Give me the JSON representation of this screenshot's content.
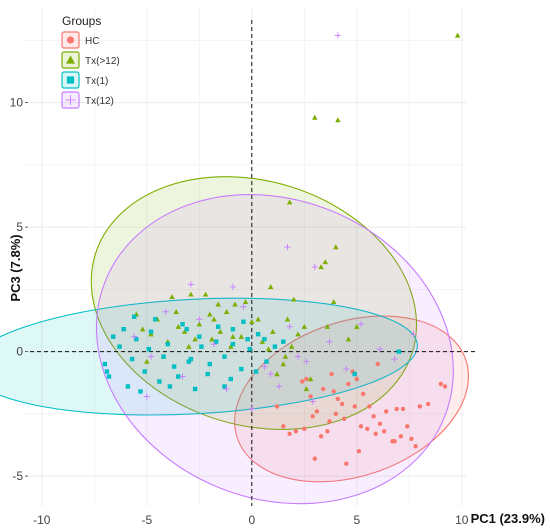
{
  "chart_data": {
    "type": "scatter",
    "xlabel": "PC1 (23.9%)",
    "ylabel": "PC3 (7.8%)",
    "xlim": [
      -10.8,
      10.2
    ],
    "ylim": [
      -6.2,
      13.8
    ],
    "x_ticks": [
      -10,
      -5,
      0,
      5,
      10
    ],
    "y_ticks": [
      -5,
      0,
      5,
      10
    ],
    "x_tick_labels": [
      "-10",
      "-5",
      "0",
      "5",
      "10"
    ],
    "y_tick_labels": [
      "-5",
      "0",
      "5",
      "10"
    ],
    "grid": true,
    "reference_lines": {
      "x": 0,
      "y": 0,
      "style": "dashed"
    },
    "legend": {
      "title": "Groups",
      "position": "top-left"
    },
    "series": [
      {
        "name": "HC",
        "marker": "circle",
        "color": "#F8766D",
        "ellipse": {
          "cx": 4.75,
          "cy": -1.9,
          "rx": 5.75,
          "ry": 3.1,
          "angle": 19
        },
        "x": [
          2.4,
          2.8,
          3.1,
          3.4,
          3.6,
          3.9,
          4.1,
          4.3,
          4.6,
          4.8,
          5.0,
          5.3,
          5.6,
          5.8,
          6.1,
          6.4,
          6.8,
          7.2,
          7.6,
          8.0,
          8.4,
          9.0,
          9.2,
          1.5,
          1.8,
          2.1,
          2.5,
          2.9,
          3.3,
          3.7,
          4.0,
          4.4,
          4.9,
          5.2,
          5.5,
          5.9,
          6.3,
          6.7,
          7.1,
          7.4,
          7.8,
          1.2,
          3.0,
          4.5,
          5.1,
          2.6,
          3.8,
          6.0,
          6.9
        ],
        "y": [
          -1.2,
          -1.8,
          -2.4,
          -1.5,
          -3.2,
          -1.6,
          -1.9,
          -2.1,
          -1.3,
          -0.8,
          -1.1,
          -1.7,
          -2.2,
          -2.6,
          -2.9,
          -2.4,
          -3.6,
          -2.3,
          -3.5,
          -2.2,
          -2.1,
          -1.3,
          -1.4,
          -3.0,
          -3.3,
          -3.2,
          -3.1,
          -2.6,
          -3.4,
          -2.8,
          -2.5,
          -2.7,
          -2.2,
          -3.0,
          -3.1,
          -3.3,
          -3.2,
          -3.6,
          -3.4,
          -3.0,
          -3.8,
          -2.2,
          -4.3,
          -4.5,
          -4.0,
          -1.1,
          -0.9,
          -0.5,
          -2.3
        ]
      },
      {
        "name": "Tx(>12)",
        "marker": "triangle",
        "color": "#7CAE00",
        "ellipse": {
          "cx": 0.1,
          "cy": 1.95,
          "rx": 7.9,
          "ry": 4.9,
          "angle": -17
        },
        "x": [
          9.8,
          3.0,
          4.1,
          1.8,
          3.5,
          -2.0,
          -1.5,
          -1.0,
          -0.5,
          0.0,
          0.5,
          1.0,
          1.5,
          2.0,
          2.5,
          -4.0,
          -3.5,
          -3.0,
          -2.5,
          -4.5,
          -5.0,
          -5.5,
          -3.8,
          -2.7,
          -1.2,
          0.3,
          1.2,
          2.2,
          3.3,
          -0.8,
          -1.8,
          -3.2,
          2.8,
          4.0,
          1.7,
          0.8,
          -0.3,
          -2.2,
          -4.2,
          -5.2,
          1.6,
          -1.6,
          -3.6,
          4.6,
          2.6,
          3.6,
          0.9,
          -0.9,
          -2.9,
          -4.8,
          1.9,
          -1.9,
          5.0,
          3.9
        ],
        "y": [
          12.7,
          9.4,
          9.3,
          6.0,
          3.6,
          1.5,
          0.8,
          0.2,
          0.6,
          1.2,
          0.4,
          0.8,
          -0.5,
          2.1,
          1.0,
          0.4,
          1.0,
          0.2,
          1.1,
          1.3,
          -0.4,
          1.5,
          2.2,
          0.5,
          1.6,
          1.3,
          -0.9,
          0.7,
          3.4,
          1.9,
          1.3,
          0.8,
          -1.1,
          4.2,
          1.3,
          0.1,
          2.0,
          2.3,
          -0.2,
          0.9,
          -0.2,
          1.9,
          1.6,
          0.5,
          -1.5,
          1.0,
          2.6,
          0.6,
          2.3,
          0.7,
          0.2,
          0.5,
          1.0,
          2.0
        ]
      },
      {
        "name": "Tx(1)",
        "marker": "square",
        "color": "#00BFC4",
        "ellipse": {
          "cx": -2.8,
          "cy": -0.2,
          "rx": 10.7,
          "ry": 2.3,
          "angle": 3
        },
        "x": [
          -7.0,
          -6.8,
          -6.3,
          -5.9,
          -5.5,
          -5.1,
          -4.8,
          -4.4,
          -4.0,
          -3.7,
          -3.3,
          -2.9,
          -2.5,
          -2.1,
          -1.7,
          -1.3,
          -0.9,
          -0.5,
          -0.1,
          0.3,
          0.7,
          1.1,
          -6.6,
          -5.7,
          -4.6,
          -3.5,
          -2.4,
          -1.3,
          -0.2,
          -5.3,
          -4.2,
          -3.1,
          -2.0,
          -0.9,
          0.2,
          -6.1,
          -3.9,
          -1.6,
          0.6,
          -4.9,
          -2.7,
          -0.4,
          -6.9,
          -5.6,
          1.5,
          4.9,
          7.0,
          -3.0,
          -1.0
        ],
        "y": [
          -0.5,
          -1.0,
          0.2,
          -1.4,
          0.5,
          -0.8,
          0.8,
          -1.2,
          0.3,
          -0.6,
          1.1,
          -0.3,
          0.6,
          -0.9,
          0.4,
          -0.2,
          0.9,
          -0.7,
          0.1,
          0.7,
          -0.4,
          0.2,
          0.6,
          -0.3,
          1.3,
          -1.0,
          0.2,
          -1.4,
          0.5,
          -1.6,
          -0.2,
          0.9,
          -0.5,
          0.3,
          -0.8,
          0.9,
          -1.4,
          1.0,
          0.5,
          0.1,
          -1.5,
          1.2,
          -0.8,
          1.4,
          0.4,
          -0.9,
          0.0,
          -0.4,
          -1.1
        ]
      },
      {
        "name": "Tx(12)",
        "marker": "cross",
        "color": "#C77CFF",
        "ellipse": {
          "cx": 1.1,
          "cy": 0.1,
          "rx": 8.7,
          "ry": 6.0,
          "angle": -22
        },
        "x": [
          4.1,
          1.7,
          -0.9,
          -2.5,
          -4.1,
          -5.6,
          0.6,
          2.2,
          3.7,
          5.2,
          6.8,
          7.7,
          -1.8,
          -3.3,
          0.0,
          1.3,
          2.9,
          4.5,
          -4.8,
          -0.4,
          1.8,
          3.0,
          -2.9,
          -5.0,
          0.9,
          6.1,
          -1.2,
          2.6
        ],
        "y": [
          12.7,
          4.2,
          2.6,
          1.3,
          1.6,
          0.6,
          -0.6,
          -0.2,
          0.4,
          1.1,
          -0.3,
          0.7,
          0.3,
          -1.0,
          -2.3,
          -1.4,
          -2.0,
          -0.7,
          -0.2,
          1.8,
          1.0,
          3.4,
          2.7,
          -1.8,
          -0.9,
          0.1,
          -1.5,
          -0.4
        ]
      }
    ]
  }
}
